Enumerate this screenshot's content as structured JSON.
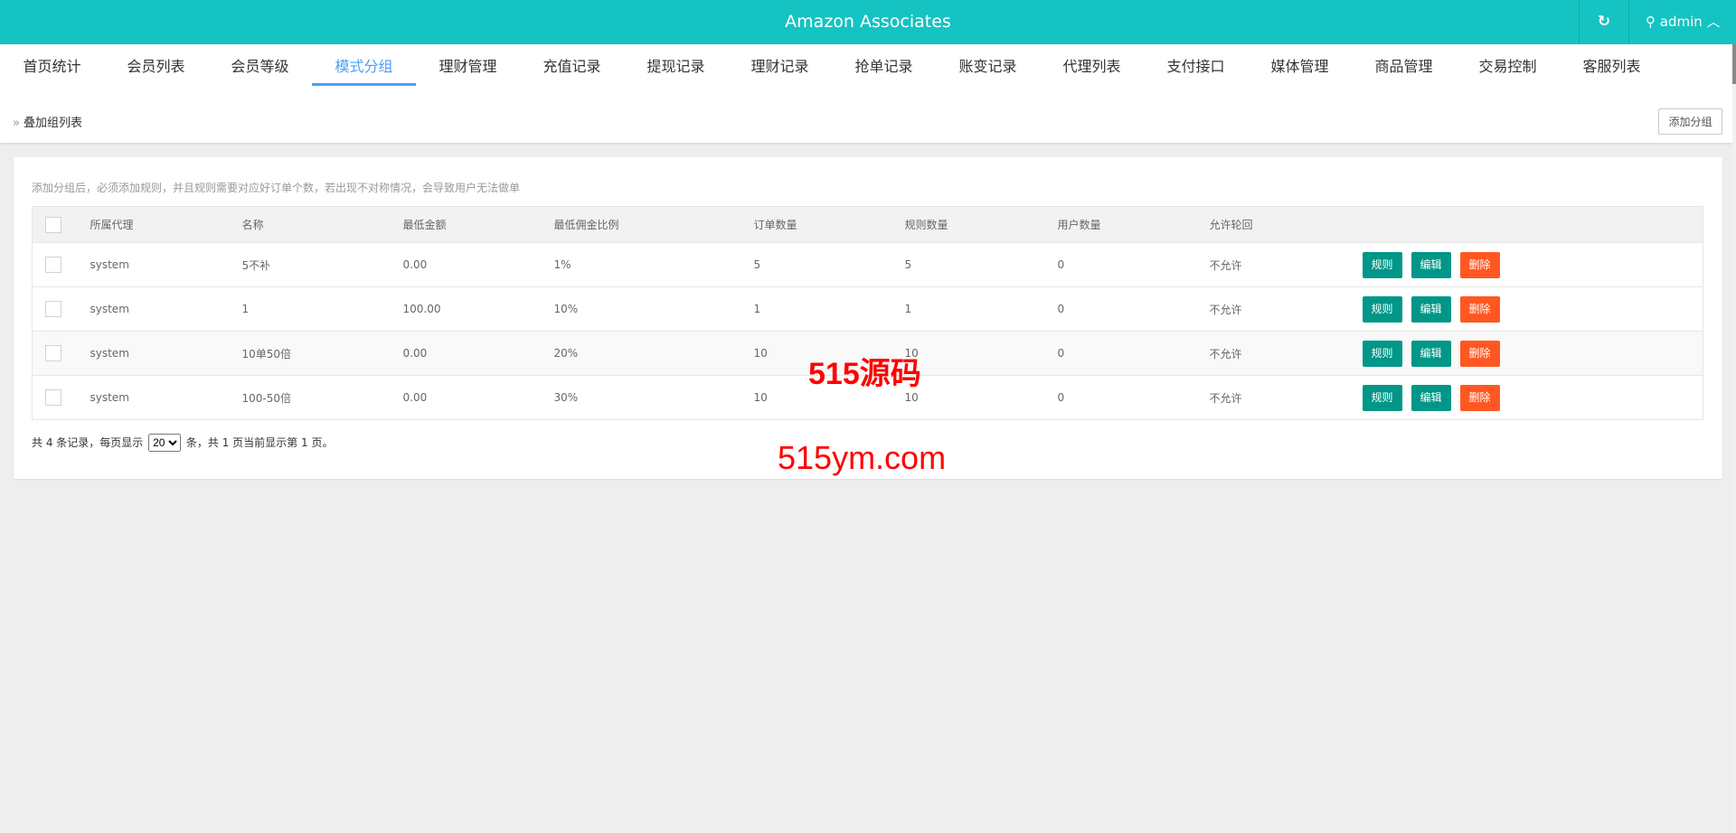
{
  "header": {
    "title": "Amazon Associates",
    "refresh_icon": "refresh-icon",
    "user_icon": "user-icon",
    "user": "admin",
    "user_chevron": "^"
  },
  "nav": {
    "active": 3,
    "tabs": [
      "首页统计",
      "会员列表",
      "会员等级",
      "模式分组",
      "理财管理",
      "充值记录",
      "提现记录",
      "理财记录",
      "抢单记录",
      "账变记录",
      "代理列表",
      "支付接口",
      "媒体管理",
      "商品管理",
      "交易控制",
      "客服列表"
    ]
  },
  "breadcrumb": {
    "icon": "»",
    "label": "叠加组列表"
  },
  "add_button": "添加分组",
  "hint": "添加分组后，必须添加规则，并且规则需要对应好订单个数，若出现不对称情况，会导致用户无法做单",
  "table": {
    "headers": [
      "所属代理",
      "名称",
      "最低金额",
      "最低佣金比例",
      "订单数量",
      "规则数量",
      "用户数量",
      "允许轮回"
    ],
    "rows": [
      [
        "system",
        "5不补",
        "0.00",
        "1%",
        "5",
        "5",
        "0",
        "不允许"
      ],
      [
        "system",
        "1",
        "100.00",
        "10%",
        "1",
        "1",
        "0",
        "不允许"
      ],
      [
        "system",
        "10单50倍",
        "0.00",
        "20%",
        "10",
        "10",
        "0",
        "不允许"
      ],
      [
        "system",
        "100-50倍",
        "0.00",
        "30%",
        "10",
        "10",
        "0",
        "不允许"
      ]
    ],
    "actions": {
      "rule": "规则",
      "edit": "编辑",
      "delete": "删除"
    },
    "colors": {
      "primary": "#009688",
      "danger": "#ff5722"
    }
  },
  "pager": {
    "prefix": "共 4 条记录，每页显示",
    "page_size": "20",
    "suffix": "条，共 1 页当前显示第 1 页。"
  },
  "watermark": {
    "line1": "515源码",
    "line2": "515ym.com"
  }
}
